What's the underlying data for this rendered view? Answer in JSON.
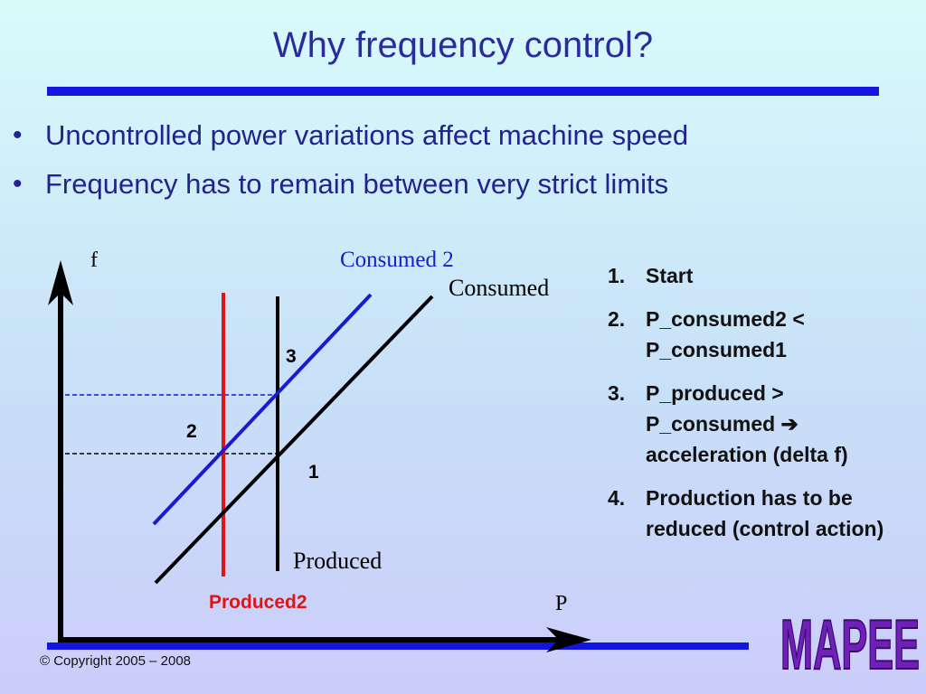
{
  "title": "Why frequency control?",
  "bullets": [
    "Uncontrolled power variations affect machine speed",
    "Frequency has to remain between very strict limits"
  ],
  "diagram": {
    "axis_y_label": "f",
    "axis_x_label": "P",
    "line_consumed2_label": "Consumed 2",
    "line_consumed_label": "Consumed",
    "line_produced_label": "Produced",
    "line_produced2_label": "Produced2",
    "point_1": "1",
    "point_2": "2",
    "point_3": "3",
    "colors": {
      "consumed2": "#1a1ad0",
      "produced2": "#e01414",
      "axis": "#000000"
    }
  },
  "steps": [
    {
      "num": "1.",
      "text": "Start"
    },
    {
      "num": "2.",
      "text": "P_consumed2 < P_consumed1"
    },
    {
      "num": "3.",
      "text": "P_produced > P_consumed ➔ acceleration (delta f)"
    },
    {
      "num": "4.",
      "text": "Production has to be reduced (control action)"
    }
  ],
  "copyright": "© Copyright 2005 – 2008",
  "logo": "MAPEE"
}
